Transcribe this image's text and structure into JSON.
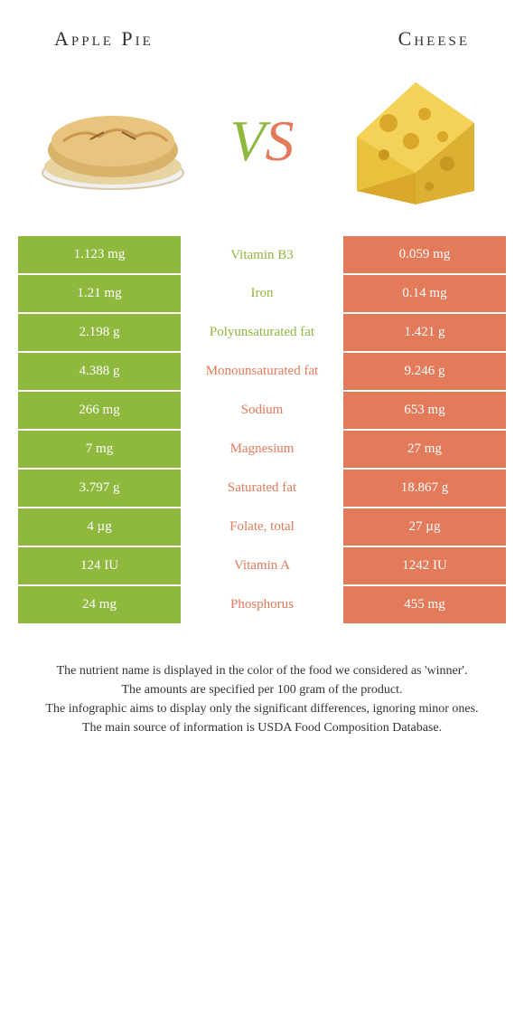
{
  "header": {
    "left_title": "Apple Pie",
    "right_title": "Cheese"
  },
  "vs_label": {
    "v": "V",
    "s": "S"
  },
  "colors": {
    "left": "#8fb83e",
    "right": "#e37a59",
    "background": "#ffffff",
    "text": "#333333"
  },
  "nutrients": [
    {
      "name": "Vitamin B3",
      "left": "1.123 mg",
      "right": "0.059 mg",
      "winner": "left"
    },
    {
      "name": "Iron",
      "left": "1.21 mg",
      "right": "0.14 mg",
      "winner": "left"
    },
    {
      "name": "Polyunsaturated fat",
      "left": "2.198 g",
      "right": "1.421 g",
      "winner": "left"
    },
    {
      "name": "Monounsaturated fat",
      "left": "4.388 g",
      "right": "9.246 g",
      "winner": "right"
    },
    {
      "name": "Sodium",
      "left": "266 mg",
      "right": "653 mg",
      "winner": "right"
    },
    {
      "name": "Magnesium",
      "left": "7 mg",
      "right": "27 mg",
      "winner": "right"
    },
    {
      "name": "Saturated fat",
      "left": "3.797 g",
      "right": "18.867 g",
      "winner": "right"
    },
    {
      "name": "Folate, total",
      "left": "4 µg",
      "right": "27 µg",
      "winner": "right"
    },
    {
      "name": "Vitamin A",
      "left": "124 IU",
      "right": "1242 IU",
      "winner": "right"
    },
    {
      "name": "Phosphorus",
      "left": "24 mg",
      "right": "455 mg",
      "winner": "right"
    }
  ],
  "footer": {
    "line1": "The nutrient name is displayed in the color of the food we considered as 'winner'.",
    "line2": "The amounts are specified per 100 gram of the product.",
    "line3": "The infographic aims to display only the significant differences, ignoring minor ones.",
    "line4": "The main source of information is USDA Food Composition Database."
  }
}
